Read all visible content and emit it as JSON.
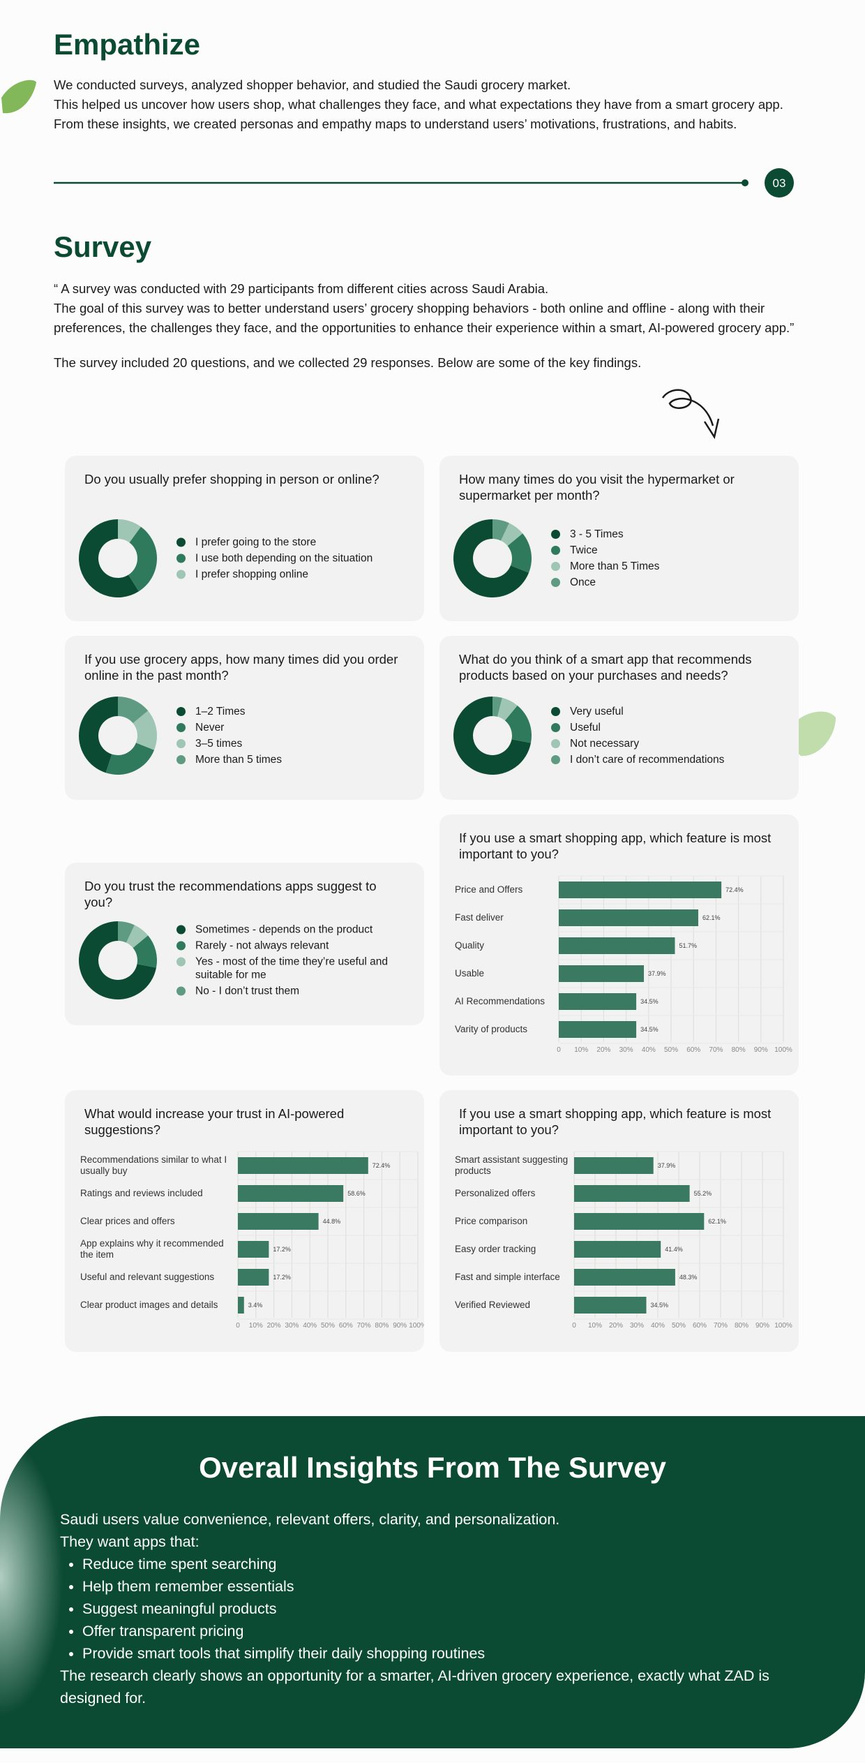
{
  "empathize": {
    "title": "Empathize",
    "lines": [
      "We conducted surveys, analyzed shopper behavior, and studied the Saudi grocery market.",
      "This helped us uncover how users shop, what challenges they face, and what expectations they have from a smart grocery app.",
      "From these insights, we created personas and empathy maps to understand users’ motivations, frustrations, and habits."
    ]
  },
  "divider_number": "03",
  "survey": {
    "title": "Survey",
    "lines": [
      "“ A survey was conducted with 29 participants from different cities across Saudi Arabia.",
      "The goal of this survey was to better understand users’ grocery shopping behaviors - both online and offline - along with their preferences, the challenges they face, and the opportunities to enhance their experience within a smart, AI-powered grocery app.”"
    ],
    "note": "The survey included 20 questions, and we collected 29 responses. Below are some of the key findings."
  },
  "chart_data": [
    {
      "type": "pie",
      "title": "Do you usually prefer shopping in person or online?",
      "categories": [
        "I prefer going to the store",
        "I use both depending on the situation",
        "I prefer shopping online"
      ],
      "values": [
        59,
        31,
        10
      ],
      "colors": [
        "#0b4a33",
        "#2f7a5d",
        "#9fc6b5"
      ]
    },
    {
      "type": "pie",
      "title": "How many times do you visit the hypermarket or supermarket per month?",
      "categories": [
        "3 - 5 Times",
        "Twice",
        "More than 5 Times",
        "Once"
      ],
      "values": [
        69,
        17,
        7,
        7
      ],
      "colors": [
        "#0b4a33",
        "#2f7a5d",
        "#9fc6b5",
        "#5f9a82"
      ]
    },
    {
      "type": "pie",
      "title": "If you use grocery apps, how many times did you order online in the past month?",
      "categories": [
        "1–2 Times",
        "Never",
        "3–5 times",
        "More than 5 times"
      ],
      "values": [
        45,
        24,
        17,
        14
      ],
      "colors": [
        "#0b4a33",
        "#2f7a5d",
        "#9fc6b5",
        "#5f9a82"
      ]
    },
    {
      "type": "pie",
      "title": "What do you think of a smart app that recommends products based on your purchases and needs?",
      "categories": [
        "Very useful",
        "Useful",
        "Not necessary",
        "I don’t care of recommendations"
      ],
      "values": [
        72,
        17,
        7,
        4
      ],
      "colors": [
        "#0b4a33",
        "#2f7a5d",
        "#9fc6b5",
        "#5f9a82"
      ]
    },
    {
      "type": "pie",
      "title": "Do you trust the recommendations apps suggest to you?",
      "categories": [
        "Sometimes - depends on the product",
        "Rarely - not always relevant",
        "Yes - most of the time they’re useful and suitable for me",
        "No - I don’t trust them"
      ],
      "values": [
        72,
        14,
        7,
        7
      ],
      "colors": [
        "#0b4a33",
        "#2f7a5d",
        "#9fc6b5",
        "#5f9a82"
      ]
    },
    {
      "type": "bar",
      "title": "If you use a smart shopping app, which feature is most important to you?",
      "categories": [
        "Price and Offers",
        "Fast deliver",
        "Quality",
        "Usable",
        "AI Recommendations",
        "Varity of products"
      ],
      "values": [
        72.4,
        62.1,
        51.7,
        37.9,
        34.5,
        34.5
      ],
      "value_labels": [
        "72.4%",
        "62.1%",
        "51.7%",
        "37.9%",
        "34.5%",
        "34.5%"
      ],
      "color": "#3a7a62",
      "xlim": [
        0,
        100
      ],
      "xticks": [
        0,
        {
          "value": 10,
          "label": "10%"
        },
        {
          "value": 20,
          "label": "20%"
        },
        {
          "value": 30,
          "label": "30%"
        },
        {
          "value": 40,
          "label": "40%"
        },
        {
          "value": 50,
          "label": "50%"
        },
        {
          "value": 60,
          "label": "60%"
        },
        {
          "value": 70,
          "label": "70%"
        },
        {
          "value": 80,
          "label": "80%"
        },
        {
          "value": 90,
          "label": "90%"
        },
        {
          "value": 100,
          "label": "100%"
        }
      ],
      "grid": true
    },
    {
      "type": "bar",
      "title": "What would increase your trust in AI-powered suggestions?",
      "categories": [
        "Recommendations similar to what I usually buy",
        "Ratings and reviews included",
        "Clear prices and offers",
        "App explains why it recommended the item",
        "Useful and relevant suggestions",
        "Clear product images and details"
      ],
      "values": [
        72.4,
        58.6,
        44.8,
        17.2,
        17.2,
        3.4
      ],
      "value_labels": [
        "72.4%",
        "58.6%",
        "44.8%",
        "17.2%",
        "17.2%",
        "3.4%"
      ],
      "color": "#3a7a62",
      "xlim": [
        0,
        100
      ],
      "xticks": [
        0,
        {
          "value": 10,
          "label": "10%"
        },
        {
          "value": 20,
          "label": "20%"
        },
        {
          "value": 30,
          "label": "30%"
        },
        {
          "value": 40,
          "label": "40%"
        },
        {
          "value": 50,
          "label": "50%"
        },
        {
          "value": 60,
          "label": "60%"
        },
        {
          "value": 70,
          "label": "70%"
        },
        {
          "value": 80,
          "label": "80%"
        },
        {
          "value": 90,
          "label": "90%"
        },
        {
          "value": 100,
          "label": "100%"
        }
      ],
      "grid": true
    },
    {
      "type": "bar",
      "title": "If you use a smart shopping app, which feature is most important to you?",
      "categories": [
        "Smart assistant suggesting products",
        "Personalized offers",
        "Price comparison",
        "Easy order tracking",
        "Fast and simple interface",
        "Verified Reviewed"
      ],
      "values": [
        37.9,
        55.2,
        62.1,
        41.4,
        48.3,
        34.5
      ],
      "value_labels": [
        "37.9%",
        "55.2%",
        "62.1%",
        "41.4%",
        "48.3%",
        "34.5%"
      ],
      "color": "#3a7a62",
      "xlim": [
        0,
        100
      ],
      "xticks": [
        0,
        {
          "value": 10,
          "label": "10%"
        },
        {
          "value": 20,
          "label": "20%"
        },
        {
          "value": 30,
          "label": "30%"
        },
        {
          "value": 40,
          "label": "40%"
        },
        {
          "value": 50,
          "label": "50%"
        },
        {
          "value": 60,
          "label": "60%"
        },
        {
          "value": 70,
          "label": "70%"
        },
        {
          "value": 80,
          "label": "80%"
        },
        {
          "value": 90,
          "label": "90%"
        },
        {
          "value": 100,
          "label": "100%"
        }
      ],
      "grid": true
    }
  ],
  "insights": {
    "title": "Overall Insights From The Survey",
    "intro": [
      "Saudi users value convenience, relevant offers, clarity, and personalization.",
      "They want apps that:"
    ],
    "bullets": [
      "Reduce time spent searching",
      "Help them remember essentials",
      "Suggest meaningful products",
      "Offer transparent pricing",
      "Provide smart tools that simplify their daily shopping routines"
    ],
    "conclusion": "The research clearly shows an opportunity for a smarter, AI-driven grocery experience,  exactly what ZAD is designed for."
  }
}
